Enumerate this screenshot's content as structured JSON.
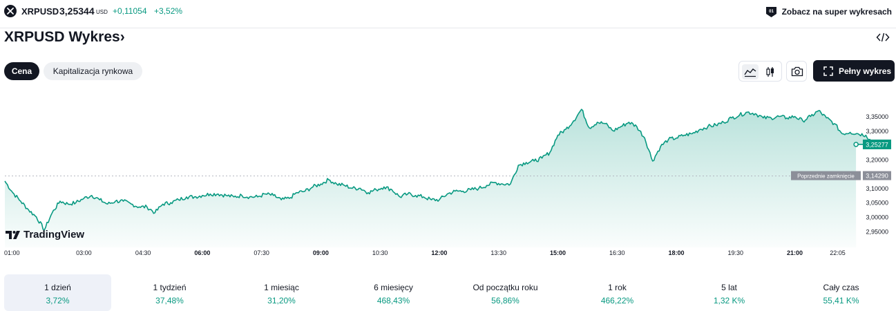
{
  "symbol": {
    "name": "XRPUSD",
    "price": "3,25344",
    "currency": "USD",
    "change": "+0,11054",
    "change_percent": "+3,52%",
    "icon": "xrp-logo-icon"
  },
  "header_link": {
    "label": "Zobacz na super wykresach",
    "icon": "supercharts-icon"
  },
  "title": "XRPUSD Wykres",
  "title_chevron": "›",
  "tabs": [
    {
      "label": "Cena",
      "active": true
    },
    {
      "label": "Kapitalizacja rynkowa",
      "active": false
    }
  ],
  "toolbar": {
    "line_chart_icon": "line-chart-icon",
    "candles_icon": "candlestick-icon",
    "camera_icon": "camera-icon",
    "fullscreen_icon": "fullscreen-icon",
    "full_chart_label": "Pełny wykres"
  },
  "colors": {
    "accent": "#089981",
    "dark": "#131722",
    "prev_close_label_bg": "#8c8f99"
  },
  "branding": "TradingView",
  "chart_data": {
    "type": "area",
    "x_ticks": [
      "01:00",
      "03:00",
      "04:30",
      "06:00",
      "07:30",
      "09:00",
      "10:30",
      "12:00",
      "13:30",
      "15:00",
      "16:30",
      "18:00",
      "19:30",
      "21:00",
      "22:05"
    ],
    "x_ticks_bold": [
      "06:00",
      "09:00",
      "12:00",
      "15:00",
      "18:00",
      "21:00"
    ],
    "y_ticks": [
      "3,35000",
      "3,30000",
      "3,25000",
      "3,20000",
      "3,15000",
      "3,10000",
      "3,05000",
      "3,00000",
      "2,95000"
    ],
    "y_tick_values": [
      3.35,
      3.3,
      3.25,
      3.2,
      3.15,
      3.1,
      3.05,
      3.0,
      2.95
    ],
    "ylim": [
      2.935,
      3.385
    ],
    "last_value_label": "3,25277",
    "last_value": 3.25277,
    "previous_close": 3.1429,
    "previous_close_label": "Poprzednie zamknięcie",
    "previous_close_value_label": "3,14290",
    "x_hours": [
      0.0,
      0.2,
      0.4,
      0.6,
      0.8,
      1.0,
      1.2,
      1.4,
      1.6,
      1.8,
      2.0,
      2.2,
      2.4,
      2.6,
      2.8,
      3.0,
      3.2,
      3.4,
      3.6,
      3.8,
      4.0,
      4.2,
      4.4,
      4.6,
      4.8,
      5.0,
      5.2,
      5.4,
      5.6,
      5.8,
      6.0,
      6.2,
      6.4,
      6.6,
      6.8,
      7.0,
      7.2,
      7.4,
      7.6,
      7.8,
      8.0,
      8.2,
      8.4,
      8.6,
      8.8,
      9.0,
      9.2,
      9.4,
      9.6,
      9.8,
      10.0,
      10.2,
      10.4,
      10.6,
      10.8,
      11.0,
      11.2,
      11.4,
      11.6,
      11.8,
      12.0,
      12.2,
      12.4,
      12.6,
      12.8,
      13.0,
      13.2,
      13.4,
      13.6,
      13.8,
      14.0,
      14.2,
      14.4,
      14.6,
      14.8,
      15.0,
      15.2,
      15.4,
      15.6,
      15.8,
      16.0,
      16.2,
      16.4,
      16.6,
      16.8,
      17.0,
      17.2,
      17.4,
      17.6,
      17.8,
      18.0,
      18.2,
      18.4,
      18.6,
      18.8,
      19.0,
      19.2,
      19.4,
      19.6,
      19.8,
      20.0,
      20.2,
      20.4,
      20.6,
      20.8,
      21.0,
      21.2,
      21.4,
      21.6,
      21.8,
      22.0
    ],
    "values": [
      3.125,
      3.085,
      3.055,
      3.025,
      3.0,
      2.955,
      3.015,
      3.055,
      3.045,
      3.05,
      3.065,
      3.075,
      3.06,
      3.045,
      3.055,
      3.055,
      3.045,
      3.035,
      3.035,
      3.015,
      3.045,
      3.05,
      3.06,
      3.07,
      3.07,
      3.075,
      3.08,
      3.08,
      3.075,
      3.07,
      3.075,
      3.07,
      3.07,
      3.08,
      3.075,
      3.06,
      3.065,
      3.085,
      3.09,
      3.105,
      3.115,
      3.13,
      3.115,
      3.11,
      3.1,
      3.1,
      3.085,
      3.095,
      3.105,
      3.095,
      3.07,
      3.08,
      3.075,
      3.07,
      3.06,
      3.06,
      3.08,
      3.09,
      3.09,
      3.095,
      3.1,
      3.11,
      3.12,
      3.115,
      3.115,
      3.18,
      3.19,
      3.195,
      3.205,
      3.225,
      3.285,
      3.305,
      3.335,
      3.375,
      3.31,
      3.33,
      3.325,
      3.3,
      3.315,
      3.33,
      3.315,
      3.275,
      3.195,
      3.245,
      3.27,
      3.275,
      3.285,
      3.29,
      3.305,
      3.315,
      3.32,
      3.33,
      3.345,
      3.355,
      3.365,
      3.36,
      3.345,
      3.345,
      3.35,
      3.345,
      3.35,
      3.335,
      3.35,
      3.37,
      3.345,
      3.325,
      3.29,
      3.295,
      3.29,
      3.285,
      3.253
    ]
  },
  "performance": [
    {
      "label": "1 dzień",
      "value": "3,72%",
      "active": true
    },
    {
      "label": "1 tydzień",
      "value": "37,48%",
      "active": false
    },
    {
      "label": "1 miesiąc",
      "value": "31,20%",
      "active": false
    },
    {
      "label": "6 miesięcy",
      "value": "468,43%",
      "active": false
    },
    {
      "label": "Od początku roku",
      "value": "56,86%",
      "active": false
    },
    {
      "label": "1 rok",
      "value": "466,22%",
      "active": false
    },
    {
      "label": "5 lat",
      "value": "1,32 K%",
      "active": false
    },
    {
      "label": "Cały czas",
      "value": "55,41 K%",
      "active": false
    }
  ]
}
